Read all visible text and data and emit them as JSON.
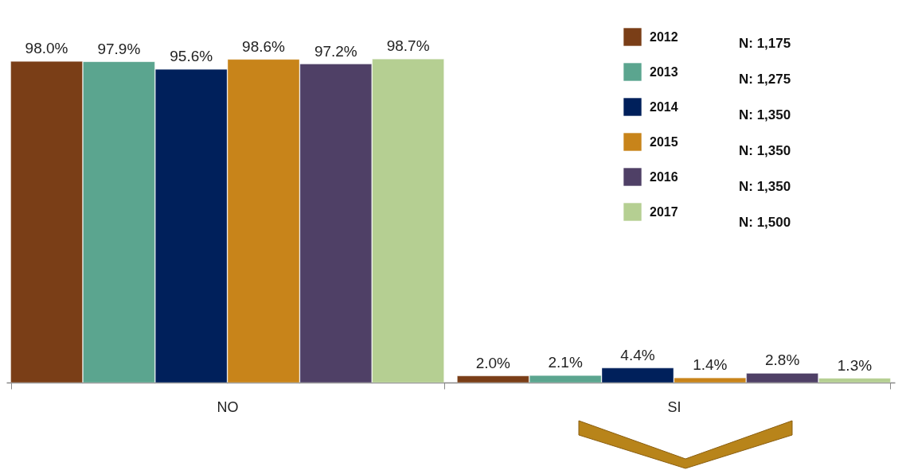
{
  "chart_data": {
    "type": "bar",
    "categories": [
      "NO",
      "SI"
    ],
    "series": [
      {
        "name": "2012",
        "color": "#7a3e17",
        "values": [
          98.0,
          2.0
        ],
        "value_labels": [
          "98.0%",
          "2.0%"
        ]
      },
      {
        "name": "2013",
        "color": "#5ba58f",
        "values": [
          97.9,
          2.1
        ],
        "value_labels": [
          "97.9%",
          "2.1%"
        ]
      },
      {
        "name": "2014",
        "color": "#00205b",
        "values": [
          95.6,
          4.4
        ],
        "value_labels": [
          "95.6%",
          "4.4%"
        ]
      },
      {
        "name": "2015",
        "color": "#c8841a",
        "values": [
          98.6,
          1.4
        ],
        "value_labels": [
          "98.6%",
          "1.4%"
        ]
      },
      {
        "name": "2016",
        "color": "#4f4066",
        "values": [
          97.2,
          2.8
        ],
        "value_labels": [
          "97.2%",
          "2.8%"
        ]
      },
      {
        "name": "2017",
        "color": "#b5cf92",
        "values": [
          98.7,
          1.3
        ],
        "value_labels": [
          "98.7%",
          "1.3%"
        ]
      }
    ],
    "annotations": [
      "N: 1,175",
      "N: 1,275",
      "N: 1,350",
      "N: 1,350",
      "N: 1,350",
      "N: 1,500"
    ],
    "legend": "top right",
    "grid": false
  }
}
